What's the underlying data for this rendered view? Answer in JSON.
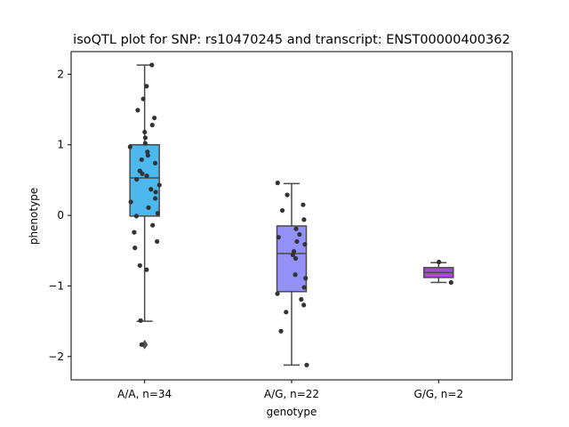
{
  "chart_data": {
    "type": "box",
    "title": "isoQTL plot for SNP: rs10470245 and transcript: ENST00000400362",
    "xlabel": "genotype",
    "ylabel": "phenotype",
    "ylim": [
      -2.33,
      2.32
    ],
    "yticks": [
      -2,
      -1,
      0,
      1,
      2
    ],
    "yticklabels": [
      "−2",
      "−1",
      "0",
      "1",
      "2"
    ],
    "grid": false,
    "categories": [
      "A/A, n=34",
      "A/G, n=22",
      "G/G, n=2"
    ],
    "boxes": [
      {
        "category": "A/A, n=34",
        "color": "#4db8ee",
        "q1": -0.01,
        "median": 0.53,
        "q3": 1.0,
        "whisker_low": -1.5,
        "whisker_high": 2.13,
        "outliers": [
          -1.83
        ],
        "points": [
          2.13,
          1.83,
          1.65,
          1.49,
          1.38,
          1.28,
          1.18,
          1.1,
          1.02,
          0.97,
          0.9,
          0.85,
          0.79,
          0.74,
          0.63,
          0.59,
          0.51,
          0.43,
          0.37,
          0.33,
          0.24,
          0.19,
          0.11,
          0.03,
          -0.01,
          -0.14,
          -0.24,
          -0.37,
          -0.46,
          -0.71,
          -0.77,
          -1.49,
          -1.83,
          0.56
        ]
      },
      {
        "category": "A/G, n=22",
        "color": "#9191f7",
        "q1": -1.08,
        "median": -0.54,
        "q3": -0.15,
        "whisker_low": -2.12,
        "whisker_high": 0.45,
        "outliers": [],
        "points": [
          0.46,
          0.29,
          0.15,
          0.07,
          -0.06,
          -0.19,
          -0.27,
          -0.31,
          -0.37,
          -0.41,
          -0.51,
          -0.56,
          -0.61,
          -0.84,
          -0.89,
          -1.02,
          -1.11,
          -1.19,
          -1.27,
          -1.37,
          -1.64,
          -2.12
        ]
      },
      {
        "category": "G/G, n=2",
        "color": "#a64ad9",
        "q1": -0.88,
        "median": -0.81,
        "q3": -0.74,
        "whisker_low": -0.95,
        "whisker_high": -0.67,
        "outliers": [],
        "points": [
          -0.66,
          -0.95
        ]
      }
    ]
  }
}
